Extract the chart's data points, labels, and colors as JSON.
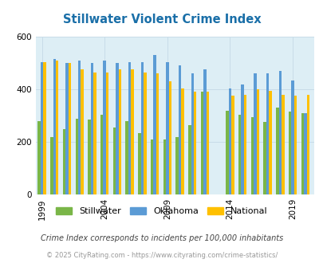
{
  "title": "Stillwater Violent Crime Index",
  "years": [
    1999,
    2000,
    2001,
    2002,
    2003,
    2004,
    2005,
    2006,
    2007,
    2008,
    2009,
    2010,
    2011,
    2012,
    2014,
    2015,
    2016,
    2017,
    2018,
    2019,
    2020
  ],
  "stillwater": [
    280,
    220,
    250,
    290,
    285,
    305,
    255,
    280,
    235,
    210,
    210,
    220,
    265,
    390,
    320,
    305,
    295,
    275,
    330,
    315,
    310
  ],
  "oklahoma": [
    505,
    515,
    500,
    510,
    500,
    510,
    500,
    505,
    505,
    530,
    505,
    490,
    460,
    475,
    405,
    420,
    460,
    460,
    470,
    435,
    310
  ],
  "national": [
    505,
    510,
    500,
    475,
    465,
    465,
    475,
    475,
    465,
    460,
    430,
    405,
    390,
    390,
    375,
    380,
    400,
    395,
    380,
    375,
    380
  ],
  "colors": {
    "stillwater": "#7ab648",
    "oklahoma": "#5b9bd5",
    "national": "#ffc000"
  },
  "ylim": [
    0,
    600
  ],
  "yticks": [
    0,
    200,
    400,
    600
  ],
  "plot_bg": "#ddeef5",
  "footnote": "Crime Index corresponds to incidents per 100,000 inhabitants",
  "copyright": "© 2025 CityRating.com - https://www.cityrating.com/crime-statistics/",
  "title_color": "#1a6fa8",
  "footnote_color": "#444444",
  "copyright_color": "#999999",
  "tick_years": [
    1999,
    2004,
    2009,
    2014,
    2019
  ]
}
